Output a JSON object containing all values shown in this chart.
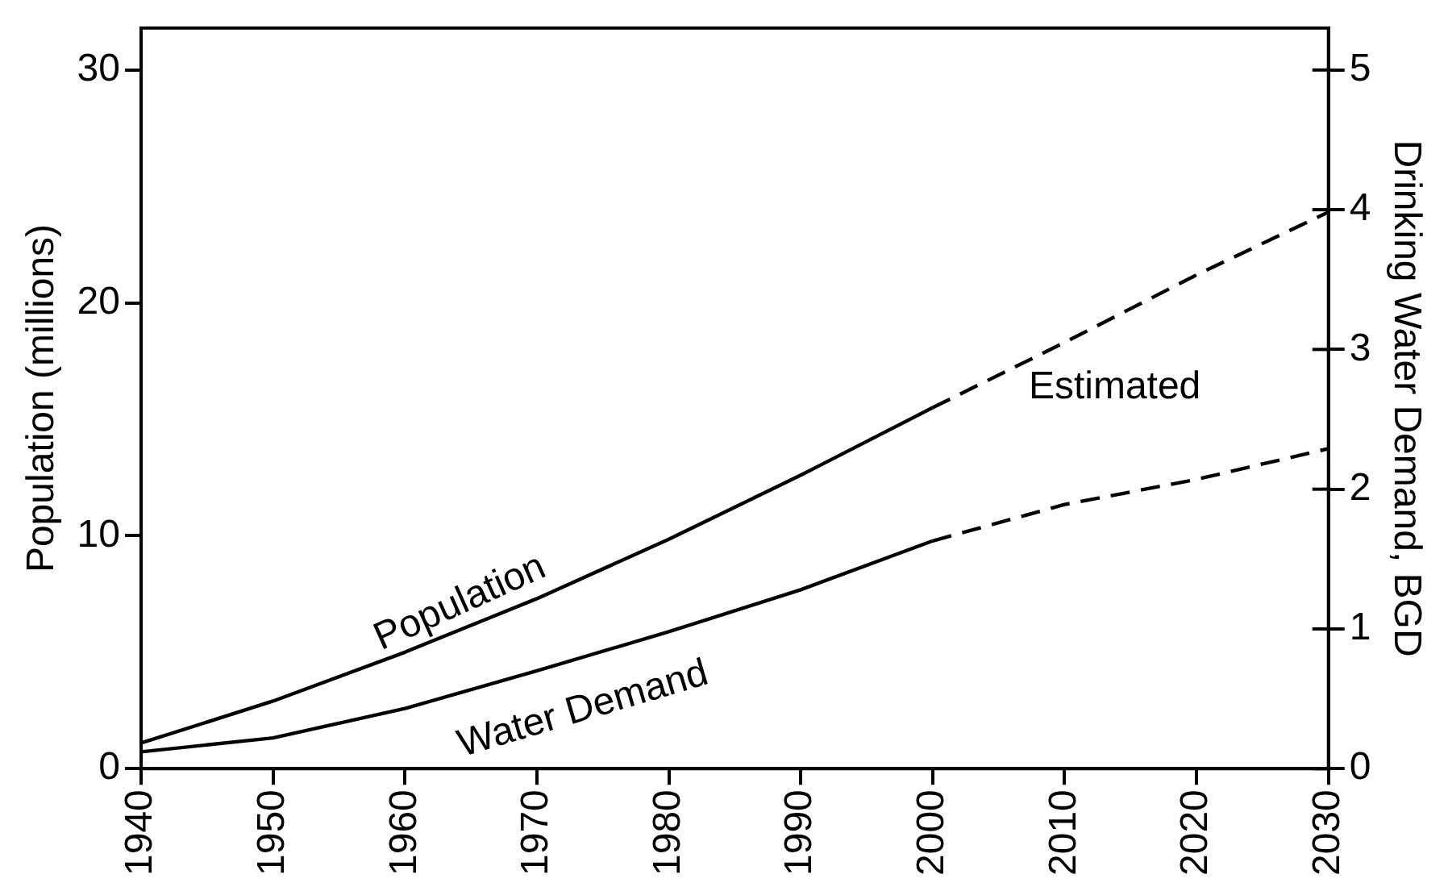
{
  "chart_data": {
    "type": "line",
    "xlabel": null,
    "ylabel": "Population (millions)",
    "y2label": "Drinking Water Demand, BGD",
    "x": [
      1940,
      1950,
      1960,
      1970,
      1980,
      1990,
      2000
    ],
    "series": [
      {
        "name": "Population",
        "color": "#000000",
        "values": [
          1.1,
          2.9,
          5.0,
          7.3,
          9.85,
          12.6,
          15.5
        ]
      },
      {
        "name": "Water Demand",
        "color": "#000000",
        "axis": "y2",
        "values": [
          0.12,
          0.22,
          0.43,
          0.7,
          0.98,
          1.28,
          1.63
        ]
      },
      {
        "color": "#000000",
        "line_style": "dashed",
        "x": [
          2000,
          2010,
          2020,
          2030
        ],
        "values": [
          15.5,
          18.3,
          21.2,
          23.9
        ]
      },
      {
        "color": "#000000",
        "line_style": "dashed",
        "axis": "y2",
        "x": [
          2000,
          2010,
          2020,
          2030
        ],
        "values": [
          1.63,
          1.89,
          2.07,
          2.29
        ]
      }
    ],
    "xlim": [
      1940,
      2030
    ],
    "xticks": [
      1940,
      1950,
      1960,
      1970,
      1980,
      1990,
      2000,
      2010,
      2020,
      2030
    ],
    "ylim": [
      0,
      31.8
    ],
    "yticks": [
      0,
      10,
      20,
      30
    ],
    "y2lim": [
      0,
      5.3
    ],
    "y2ticks": [
      0,
      1,
      2,
      3,
      4,
      5
    ],
    "annotations": [
      "Estimated"
    ],
    "grid": false,
    "legend": false,
    "marker": "none",
    "line_style": "solid"
  }
}
